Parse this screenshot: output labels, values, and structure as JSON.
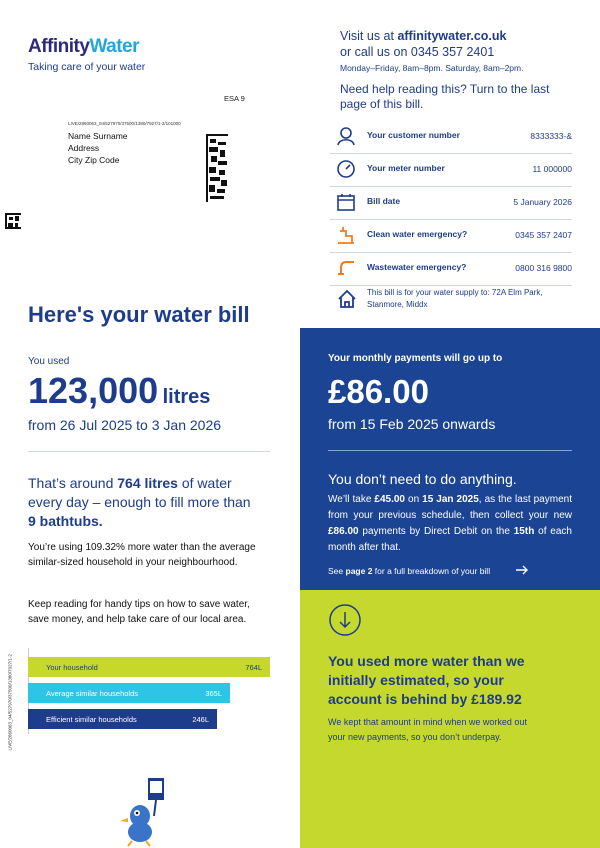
{
  "header": {
    "logo_first": "Affinity",
    "logo_second": "Water",
    "tagline": "Taking care of your water",
    "esa": "ESA 9",
    "mail_code": "LIVE/2860063_04/527970/37500/1380/7927/1-2/101000",
    "address": [
      "Name Surname",
      "Address",
      "City Zip Code"
    ]
  },
  "contact": {
    "visit": [
      "Visit us at ",
      "affinitywater.co.uk"
    ],
    "call": "or call us on 0345 357 2401",
    "hours": "Monday–Friday, 8am–8pm. Saturday, 8am–2pm.",
    "help": "Need help reading this? Turn to the last page of this bill."
  },
  "details": [
    {
      "label": "Your customer number",
      "value": "8333333-&"
    },
    {
      "label": "Your meter number",
      "value": "11 000000"
    },
    {
      "label": "Bill date",
      "value": "5 January 2026"
    },
    {
      "label": "Clean water emergency?",
      "value": "0345 357 2407"
    },
    {
      "label": "Wastewater emergency?",
      "value": "0800 316 9800"
    }
  ],
  "supply_note": "This bill is for your water supply to: 72A Elm Park, Stanmore, Middx",
  "usage": {
    "heading": "Here's your water bill",
    "used_label": "You used",
    "amount": "123,000",
    "unit": "litres",
    "period": "from 26 Jul 2025 to 3 Jan 2026",
    "summary": [
      "That’s around ",
      "764 litres",
      " of water every day – enough to fill more than ",
      "9 bathtubs."
    ],
    "comparison_text": "You’re using 109.32% more water than the average similar-sized household in your neighbourhood.",
    "tips": "Keep reading for handy tips on how to save water, save money, and help take care of our local area."
  },
  "comparison": [
    {
      "label": "Your household",
      "value": "764L"
    },
    {
      "label": "Average similar households",
      "value": "365L"
    },
    {
      "label": "Efficient similar households",
      "value": "246L"
    }
  ],
  "side_code": "LIVE/2860063_04/527970/37500/1380/7927/1-2",
  "payments": {
    "label": "Your monthly payments will go up to",
    "amount": "£86.00",
    "from": "from 15 Feb 2025 onwards",
    "action": "You don’t need to do anything.",
    "explain": [
      "We’ll take ",
      "£45.00",
      " on ",
      "15 Jan 2025",
      ", as the last payment from your previous schedule, then collect your new ",
      "£86.00",
      " payments by Direct Debit on the ",
      "15th",
      " of each month after that."
    ],
    "see": [
      "See ",
      "page 2",
      " for a full breakdown of your bill"
    ]
  },
  "estimate": {
    "heading": "You used more water than we initially estimated, so your account is behind by £189.92",
    "body": "We kept that amount in mind when we worked out your new payments, so you don’t underpay."
  }
}
